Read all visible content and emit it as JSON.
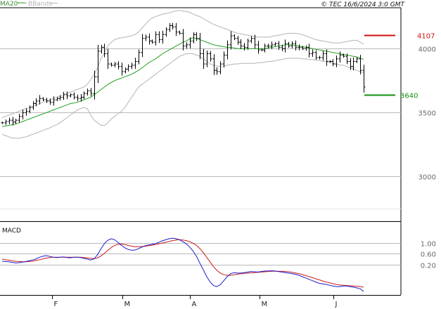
{
  "header": {
    "ma_label": "MA20",
    "bbands_label": "BBands",
    "source": "© TEC 16/6/2024 3:0 GMT"
  },
  "colors": {
    "ma": "#22a022",
    "bbands": "#b4b4b4",
    "price_bar": "#000000",
    "resistance": "#d01010",
    "support": "#109010",
    "macd_line": "#1a1acc",
    "signal_line": "#cc1a1a",
    "grid": "#b9b9b9",
    "tick_text": "#6a6a6a"
  },
  "chart_data": [
    {
      "type": "ohlc",
      "title": "",
      "ylim": [
        2650,
        4320
      ],
      "y_ticks": [
        "4000",
        "3500",
        "3000"
      ],
      "x_ticks": [
        "F",
        "M",
        "A",
        "M",
        "J"
      ],
      "levels": [
        {
          "label": "4107",
          "value": 4107,
          "color": "#d01010"
        },
        {
          "label": "3640",
          "value": 3640,
          "color": "#109010"
        }
      ],
      "close": [
        3420,
        3430,
        3440,
        3425,
        3440,
        3470,
        3500,
        3510,
        3540,
        3570,
        3590,
        3610,
        3600,
        3590,
        3580,
        3600,
        3610,
        3620,
        3640,
        3630,
        3640,
        3620,
        3610,
        3620,
        3650,
        3670,
        3650,
        3780,
        3980,
        4010,
        3960,
        3880,
        3870,
        3880,
        3860,
        3820,
        3840,
        3860,
        3870,
        3900,
        3970,
        4080,
        4090,
        4060,
        4050,
        4110,
        4070,
        4110,
        4150,
        4180,
        4170,
        4130,
        4120,
        4020,
        4030,
        4060,
        4110,
        4080,
        3960,
        3880,
        3960,
        3920,
        3830,
        3820,
        3880,
        3950,
        4030,
        4100,
        4080,
        4050,
        4020,
        4010,
        4060,
        4080,
        4030,
        3990,
        3990,
        4020,
        4020,
        4030,
        4040,
        4010,
        4000,
        4040,
        4020,
        4040,
        4010,
        4010,
        4000,
        4010,
        3960,
        3970,
        3930,
        3930,
        3960,
        3900,
        3900,
        3880,
        3920,
        3950,
        3940,
        3900,
        3860,
        3900,
        3920,
        3830,
        3700
      ],
      "ma20": [
        3390,
        3395,
        3400,
        3405,
        3410,
        3420,
        3430,
        3440,
        3450,
        3460,
        3470,
        3480,
        3490,
        3500,
        3510,
        3520,
        3530,
        3540,
        3550,
        3560,
        3570,
        3575,
        3580,
        3590,
        3600,
        3610,
        3620,
        3640,
        3660,
        3680,
        3700,
        3720,
        3735,
        3750,
        3760,
        3770,
        3780,
        3790,
        3800,
        3815,
        3830,
        3850,
        3870,
        3890,
        3905,
        3920,
        3940,
        3960,
        3975,
        3990,
        4005,
        4020,
        4035,
        4050,
        4060,
        4075,
        4085,
        4080,
        4070,
        4060,
        4050,
        4040,
        4030,
        4025,
        4020,
        4015,
        4010,
        4010,
        4005,
        4000,
        4000,
        4000,
        4000,
        4000,
        4000,
        4000,
        4000,
        4000,
        4005,
        4010,
        4015,
        4020,
        4025,
        4030,
        4030,
        4030,
        4025,
        4020,
        4015,
        4010,
        4005,
        4000,
        3995,
        3990,
        3985,
        3980,
        3975,
        3970,
        3965,
        3960,
        3955,
        3950,
        3945,
        3940,
        3935,
        3925,
        3915
      ],
      "bb_upper": [
        3460,
        3470,
        3480,
        3490,
        3500,
        3510,
        3520,
        3530,
        3540,
        3550,
        3560,
        3570,
        3580,
        3590,
        3600,
        3610,
        3620,
        3630,
        3640,
        3650,
        3660,
        3670,
        3680,
        3690,
        3700,
        3720,
        3760,
        3800,
        3850,
        3920,
        3970,
        4020,
        4050,
        4070,
        4080,
        4085,
        4090,
        4095,
        4100,
        4110,
        4130,
        4160,
        4190,
        4220,
        4240,
        4250,
        4260,
        4270,
        4275,
        4280,
        4290,
        4295,
        4300,
        4295,
        4290,
        4285,
        4270,
        4260,
        4250,
        4235,
        4220,
        4205,
        4190,
        4180,
        4170,
        4160,
        4150,
        4140,
        4130,
        4120,
        4115,
        4110,
        4105,
        4100,
        4095,
        4090,
        4090,
        4090,
        4090,
        4095,
        4100,
        4105,
        4110,
        4115,
        4120,
        4120,
        4120,
        4115,
        4110,
        4100,
        4090,
        4080,
        4070,
        4065,
        4060,
        4055,
        4050,
        4045,
        4045,
        4045,
        4050,
        4055,
        4060,
        4065,
        4065,
        4050,
        4035
      ],
      "bb_lower": [
        3330,
        3320,
        3310,
        3300,
        3300,
        3300,
        3305,
        3310,
        3320,
        3330,
        3340,
        3350,
        3360,
        3370,
        3380,
        3395,
        3405,
        3420,
        3440,
        3460,
        3480,
        3500,
        3520,
        3530,
        3540,
        3530,
        3480,
        3440,
        3420,
        3400,
        3400,
        3420,
        3450,
        3470,
        3490,
        3510,
        3540,
        3580,
        3620,
        3660,
        3700,
        3720,
        3740,
        3760,
        3780,
        3800,
        3820,
        3840,
        3860,
        3880,
        3900,
        3920,
        3940,
        3950,
        3960,
        3960,
        3960,
        3950,
        3940,
        3920,
        3900,
        3880,
        3870,
        3865,
        3860,
        3865,
        3870,
        3875,
        3880,
        3880,
        3885,
        3885,
        3885,
        3885,
        3885,
        3890,
        3890,
        3895,
        3900,
        3900,
        3905,
        3910,
        3915,
        3920,
        3925,
        3925,
        3925,
        3925,
        3920,
        3920,
        3915,
        3915,
        3910,
        3910,
        3900,
        3900,
        3890,
        3885,
        3880,
        3870,
        3870,
        3860,
        3850,
        3840,
        3830,
        3820,
        3810
      ]
    },
    {
      "type": "line",
      "title": "MACD",
      "ylim": [
        -0.8,
        1.6
      ],
      "y_ticks": [
        "1.00",
        "0.60",
        "0.20"
      ],
      "x_ticks": [
        "F",
        "M",
        "A",
        "M",
        "J"
      ],
      "series": [
        {
          "color": "#1a1acc",
          "values": [
            0.32,
            0.31,
            0.3,
            0.28,
            0.26,
            0.27,
            0.29,
            0.31,
            0.34,
            0.37,
            0.41,
            0.47,
            0.51,
            0.53,
            0.5,
            0.47,
            0.46,
            0.47,
            0.48,
            0.46,
            0.45,
            0.47,
            0.47,
            0.46,
            0.43,
            0.4,
            0.37,
            0.41,
            0.57,
            0.79,
            0.98,
            1.1,
            1.16,
            1.12,
            1.02,
            0.91,
            0.82,
            0.76,
            0.73,
            0.74,
            0.79,
            0.85,
            0.9,
            0.93,
            0.95,
            0.98,
            1.03,
            1.08,
            1.12,
            1.16,
            1.18,
            1.16,
            1.12,
            1.05,
            0.97,
            0.85,
            0.7,
            0.5,
            0.25,
            0.0,
            -0.25,
            -0.45,
            -0.58,
            -0.62,
            -0.55,
            -0.4,
            -0.25,
            -0.14,
            -0.1,
            -0.12,
            -0.12,
            -0.1,
            -0.08,
            -0.06,
            -0.07,
            -0.08,
            -0.06,
            -0.04,
            -0.04,
            -0.03,
            -0.04,
            -0.06,
            -0.08,
            -0.1,
            -0.12,
            -0.14,
            -0.16,
            -0.2,
            -0.25,
            -0.3,
            -0.35,
            -0.4,
            -0.45,
            -0.5,
            -0.52,
            -0.54,
            -0.57,
            -0.6,
            -0.62,
            -0.62,
            -0.6,
            -0.6,
            -0.62,
            -0.64,
            -0.67,
            -0.7,
            -0.8
          ]
        },
        {
          "color": "#cc1a1a",
          "values": [
            0.4,
            0.38,
            0.36,
            0.34,
            0.32,
            0.31,
            0.3,
            0.3,
            0.31,
            0.33,
            0.35,
            0.38,
            0.41,
            0.44,
            0.46,
            0.47,
            0.47,
            0.47,
            0.47,
            0.47,
            0.47,
            0.47,
            0.47,
            0.47,
            0.46,
            0.45,
            0.43,
            0.42,
            0.45,
            0.52,
            0.62,
            0.73,
            0.83,
            0.91,
            0.95,
            0.96,
            0.94,
            0.91,
            0.88,
            0.86,
            0.86,
            0.87,
            0.88,
            0.9,
            0.92,
            0.94,
            0.97,
            1.0,
            1.03,
            1.06,
            1.09,
            1.11,
            1.12,
            1.11,
            1.09,
            1.05,
            0.99,
            0.91,
            0.79,
            0.64,
            0.47,
            0.29,
            0.12,
            -0.02,
            -0.12,
            -0.18,
            -0.2,
            -0.2,
            -0.18,
            -0.16,
            -0.14,
            -0.13,
            -0.12,
            -0.11,
            -0.1,
            -0.09,
            -0.08,
            -0.07,
            -0.06,
            -0.05,
            -0.05,
            -0.05,
            -0.05,
            -0.06,
            -0.07,
            -0.09,
            -0.11,
            -0.14,
            -0.17,
            -0.21,
            -0.25,
            -0.29,
            -0.33,
            -0.37,
            -0.41,
            -0.45,
            -0.48,
            -0.51,
            -0.54,
            -0.56,
            -0.57,
            -0.58,
            -0.59,
            -0.6,
            -0.61,
            -0.62,
            -0.64
          ]
        }
      ]
    }
  ]
}
